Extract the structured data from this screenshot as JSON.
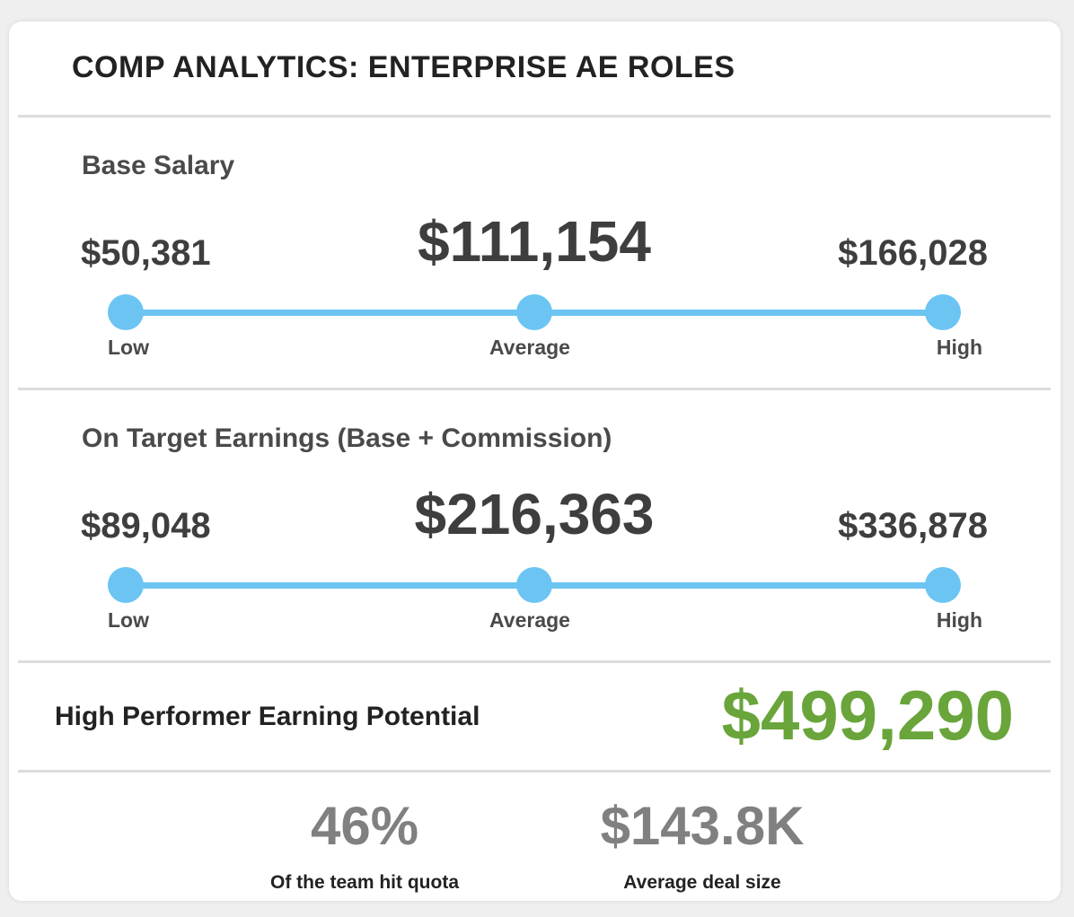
{
  "card": {
    "title": "COMP ANALYTICS: ENTERPRISE AE ROLES"
  },
  "base_salary": {
    "heading": "Base Salary",
    "low_value": "$50,381",
    "average_value": "$111,154",
    "high_value": "$166,028",
    "low_label": "Low",
    "average_label": "Average",
    "high_label": "High"
  },
  "ote": {
    "heading": "On Target Earnings (Base + Commission)",
    "low_value": "$89,048",
    "average_value": "$216,363",
    "high_value": "$336,878",
    "low_label": "Low",
    "average_label": "Average",
    "high_label": "High"
  },
  "high_performer": {
    "label": "High Performer Earning Potential",
    "value": "$499,290"
  },
  "stats": [
    {
      "value": "46%",
      "caption": "Of the team hit quota"
    },
    {
      "value": "$143.8K",
      "caption": "Average deal size"
    }
  ],
  "colors": {
    "range_accent": "#6cc4f3",
    "potential_green": "#69a53a",
    "stat_gray": "#808080"
  }
}
